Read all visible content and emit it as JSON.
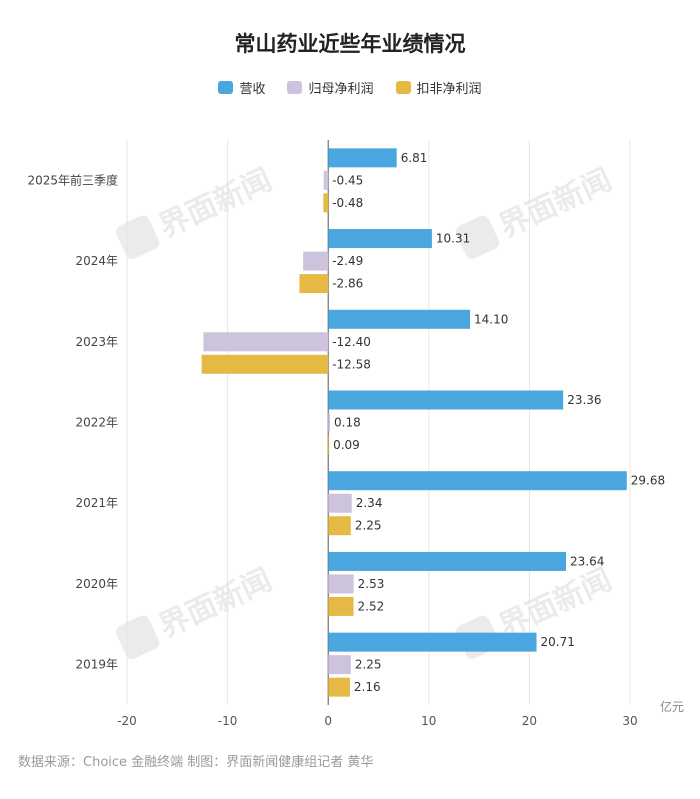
{
  "title": "常山药业近些年业绩情况",
  "unit": "亿元",
  "footer": "数据来源：Choice 金融终端 制图：界面新闻健康组记者 黄华",
  "watermark": "界面新闻",
  "chart_data": {
    "type": "bar",
    "orientation": "horizontal",
    "categories": [
      "2025年前三季度",
      "2024年",
      "2023年",
      "2022年",
      "2021年",
      "2020年",
      "2019年"
    ],
    "series": [
      {
        "name": "营收",
        "color": "#4aa6df",
        "values": [
          6.81,
          10.31,
          14.1,
          23.36,
          29.68,
          23.64,
          20.71
        ]
      },
      {
        "name": "归母净利润",
        "color": "#cdc3dd",
        "values": [
          -0.45,
          -2.49,
          -12.4,
          0.18,
          2.34,
          2.53,
          2.25
        ]
      },
      {
        "name": "扣非净利润",
        "color": "#e6b844",
        "values": [
          -0.48,
          -2.86,
          -12.58,
          0.09,
          2.25,
          2.52,
          2.16
        ]
      }
    ],
    "xlim": [
      -20,
      30
    ],
    "xticks": [
      -20,
      -10,
      0,
      10,
      20,
      30
    ],
    "value_labels": [
      "6.81",
      "10.31",
      "14.10",
      "23.36",
      "29.68",
      "23.64",
      "20.71",
      "-0.45",
      "-2.49",
      "-12.40",
      "0.18",
      "2.34",
      "2.53",
      "2.25",
      "-0.48",
      "-2.86",
      "-12.58",
      "0.09",
      "2.25",
      "2.52",
      "2.16"
    ],
    "grid": true,
    "legend_position": "top-center"
  }
}
